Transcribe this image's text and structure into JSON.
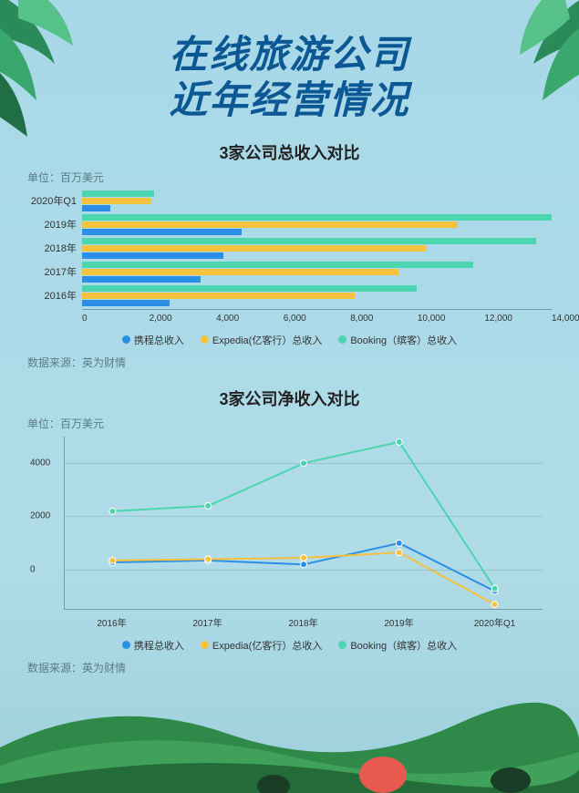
{
  "title_line1": "在线旅游公司",
  "title_line2": "近年经营情况",
  "colors": {
    "series1": "#2b8fe6",
    "series2": "#f5c23e",
    "series3": "#4bd6b0",
    "title": "#0b5894",
    "axis": "#7a9aa8",
    "text_muted": "#5a7a88",
    "bg_top": "#a8d8e8"
  },
  "bar_chart": {
    "title": "3家公司总收入对比",
    "unit": "单位：百万美元",
    "source": "数据来源：英为财情",
    "x_max": 15000,
    "x_ticks": [
      "0",
      "2,000",
      "4,000",
      "6,000",
      "8,000",
      "10,000",
      "12,000",
      "14,000"
    ],
    "categories": [
      "2020年Q1",
      "2019年",
      "2018年",
      "2017年",
      "2016年"
    ],
    "series": [
      {
        "name": "携程总收入",
        "color": "#2b8fe6",
        "values": [
          900,
          5100,
          4500,
          3800,
          2800
        ]
      },
      {
        "name": "Expedia(亿客行）总收入",
        "color": "#f5c23e",
        "values": [
          2200,
          12000,
          11000,
          10100,
          8700
        ]
      },
      {
        "name": "Booking（缤客）总收入",
        "color": "#4bd6b0",
        "values": [
          2300,
          15000,
          14500,
          12500,
          10700
        ]
      }
    ],
    "legend": [
      "携程总收入",
      "Expedia(亿客行）总收入",
      "Booking（缤客）总收入"
    ]
  },
  "line_chart": {
    "title": "3家公司净收入对比",
    "unit": "单位：百万美元",
    "source": "数据来源：英为财情",
    "y_min": -1500,
    "y_max": 5000,
    "y_ticks": [
      0,
      2000,
      4000
    ],
    "x_labels": [
      "2016年",
      "2017年",
      "2018年",
      "2019年",
      "2020年Q1"
    ],
    "series": [
      {
        "name": "携程总收入",
        "color": "#2b8fe6",
        "values": [
          280,
          350,
          200,
          1000,
          -800
        ]
      },
      {
        "name": "Expedia(亿客行）总收入",
        "color": "#f5c23e",
        "values": [
          350,
          400,
          450,
          650,
          -1300
        ]
      },
      {
        "name": "Booking（缤客）总收入",
        "color": "#4bd6b0",
        "values": [
          2200,
          2400,
          4000,
          4800,
          -700
        ]
      }
    ],
    "legend": [
      "携程总收入",
      "Expedia(亿客行）总收入",
      "Booking（缤客）总收入"
    ],
    "line_width": 2,
    "marker_radius": 3.5
  }
}
